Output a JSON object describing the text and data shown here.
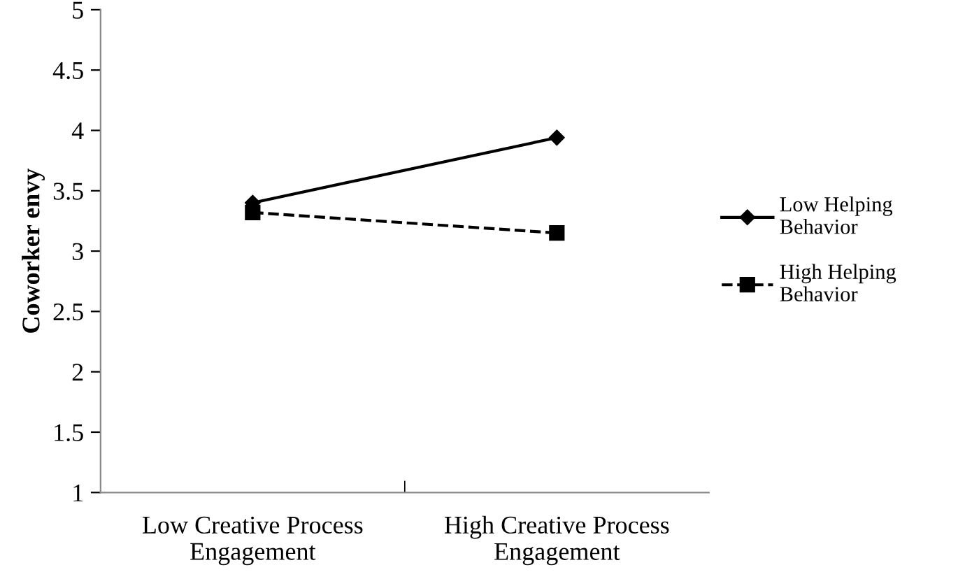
{
  "chart_data": {
    "type": "line",
    "ylabel": "Coworker envy",
    "categories": [
      "Low Creative Process\nEngagement",
      "High Creative Process\nEngagement"
    ],
    "series": [
      {
        "name": "Low Helping\nBehavior",
        "color": "#000000",
        "values": [
          3.4,
          3.94
        ],
        "marker": "diamond",
        "line_style": "solid"
      },
      {
        "name": "High Helping\nBehavior",
        "color": "#000000",
        "values": [
          3.32,
          3.15
        ],
        "marker": "square",
        "line_style": "dashed"
      }
    ],
    "ylim": [
      1,
      5
    ],
    "yticks": [
      1,
      1.5,
      2,
      2.5,
      3,
      3.5,
      4,
      4.5,
      5
    ],
    "grid": false,
    "legend": "right"
  }
}
